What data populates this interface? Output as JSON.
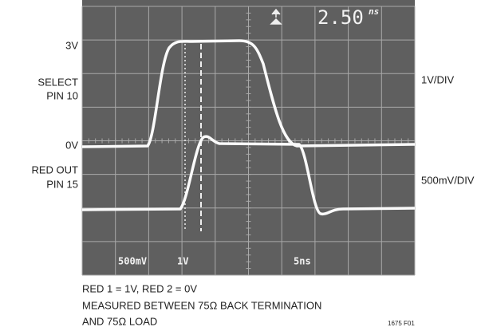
{
  "scope": {
    "readout": {
      "value": "2.50",
      "unit": "ns"
    },
    "bottom_labels": [
      "500mV",
      "1V",
      "5ns"
    ]
  },
  "left_labels": {
    "top_level": "3V",
    "select": [
      "SELECT",
      "PIN 10"
    ],
    "zero_level": "0V",
    "red_out": [
      "RED OUT",
      "PIN 15"
    ]
  },
  "right_labels": {
    "upper": "1V/DIV",
    "lower": "500mV/DIV"
  },
  "caption": [
    "RED 1 = 1V, RED 2 = 0V",
    "MEASURED BETWEEN 75Ω BACK TERMINATION",
    "AND 75Ω LOAD"
  ],
  "figure_id": "1675 F01"
}
